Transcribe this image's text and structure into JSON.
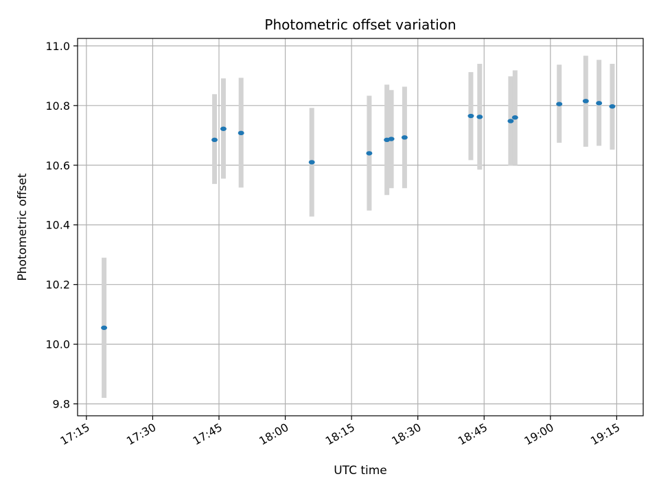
{
  "chart_data": {
    "type": "scatter",
    "title": "Photometric offset variation",
    "xlabel": "UTC time",
    "ylabel": "Photometric offset",
    "x_unit": "time of day (UTC)",
    "xlim": [
      "17:13",
      "19:21"
    ],
    "ylim": [
      9.76,
      11.025
    ],
    "x_ticks": [
      "17:15",
      "17:30",
      "17:45",
      "18:00",
      "18:15",
      "18:30",
      "18:45",
      "19:00",
      "19:15"
    ],
    "y_ticks": [
      9.8,
      10.0,
      10.2,
      10.4,
      10.6,
      10.8,
      11.0
    ],
    "y_tick_labels": [
      "9.8",
      "10.0",
      "10.2",
      "10.4",
      "10.6",
      "10.8",
      "11.0"
    ],
    "grid": true,
    "marker_color": "#1f77b4",
    "errorbar_color": "#d3d3d3",
    "points": [
      {
        "x": "17:19",
        "y": 10.055,
        "low": 9.82,
        "high": 10.29
      },
      {
        "x": "17:44",
        "y": 10.685,
        "low": 10.537,
        "high": 10.838
      },
      {
        "x": "17:46",
        "y": 10.722,
        "low": 10.555,
        "high": 10.891
      },
      {
        "x": "17:50",
        "y": 10.708,
        "low": 10.525,
        "high": 10.893
      },
      {
        "x": "18:06",
        "y": 10.61,
        "low": 10.428,
        "high": 10.792
      },
      {
        "x": "18:19",
        "y": 10.64,
        "low": 10.448,
        "high": 10.833
      },
      {
        "x": "18:23",
        "y": 10.685,
        "low": 10.5,
        "high": 10.87
      },
      {
        "x": "18:24",
        "y": 10.688,
        "low": 10.523,
        "high": 10.852
      },
      {
        "x": "18:27",
        "y": 10.693,
        "low": 10.523,
        "high": 10.863
      },
      {
        "x": "18:42",
        "y": 10.765,
        "low": 10.617,
        "high": 10.912
      },
      {
        "x": "18:44",
        "y": 10.762,
        "low": 10.585,
        "high": 10.94
      },
      {
        "x": "18:51",
        "y": 10.748,
        "low": 10.598,
        "high": 10.898
      },
      {
        "x": "18:52",
        "y": 10.76,
        "low": 10.6,
        "high": 10.918
      },
      {
        "x": "19:02",
        "y": 10.805,
        "low": 10.675,
        "high": 10.937
      },
      {
        "x": "19:08",
        "y": 10.815,
        "low": 10.662,
        "high": 10.967
      },
      {
        "x": "19:11",
        "y": 10.808,
        "low": 10.665,
        "high": 10.953
      },
      {
        "x": "19:14",
        "y": 10.797,
        "low": 10.652,
        "high": 10.94
      }
    ]
  }
}
